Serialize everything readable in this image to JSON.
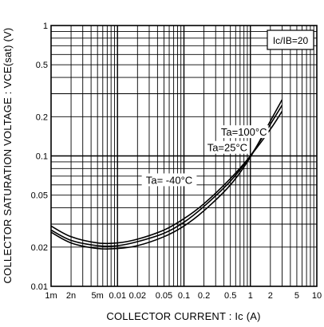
{
  "chart_data": {
    "type": "line",
    "title": "",
    "xlabel": "COLLECTOR CURRENT : Ic (A)",
    "ylabel": "COLLECTOR SATURATION VOLTAGE : VCE(sat) (V)",
    "condition_label": "Ic/IB=20",
    "x_scale": "log",
    "y_scale": "log",
    "xlim": [
      0.001,
      10
    ],
    "ylim": [
      0.01,
      1
    ],
    "grid": true,
    "x_ticks": [
      {
        "value": 0.001,
        "label": "1m"
      },
      {
        "value": 0.002,
        "label": "2n"
      },
      {
        "value": 0.005,
        "label": "5m"
      },
      {
        "value": 0.01,
        "label": "0.01"
      },
      {
        "value": 0.02,
        "label": "0.02"
      },
      {
        "value": 0.05,
        "label": "0.05"
      },
      {
        "value": 0.1,
        "label": "0.1"
      },
      {
        "value": 0.2,
        "label": "0.2"
      },
      {
        "value": 0.5,
        "label": "0.5"
      },
      {
        "value": 1,
        "label": "1"
      },
      {
        "value": 2,
        "label": "2"
      },
      {
        "value": 5,
        "label": "5"
      },
      {
        "value": 10,
        "label": "10"
      }
    ],
    "y_ticks": [
      {
        "value": 1,
        "label": "1"
      },
      {
        "value": 0.5,
        "label": "0.5"
      },
      {
        "value": 0.2,
        "label": "0.2"
      },
      {
        "value": 0.1,
        "label": "0.1"
      },
      {
        "value": 0.05,
        "label": "0.05"
      },
      {
        "value": 0.02,
        "label": "0.02"
      },
      {
        "value": 0.01,
        "label": "0.01"
      }
    ],
    "series": [
      {
        "name": "Ta=100°C",
        "x": [
          0.001,
          0.002,
          0.005,
          0.01,
          0.02,
          0.05,
          0.1,
          0.2,
          0.5,
          1,
          2,
          3
        ],
        "values": [
          0.029,
          0.024,
          0.0215,
          0.0215,
          0.023,
          0.027,
          0.033,
          0.043,
          0.067,
          0.1,
          0.16,
          0.22
        ]
      },
      {
        "name": "Ta=25°C",
        "x": [
          0.001,
          0.002,
          0.005,
          0.01,
          0.02,
          0.05,
          0.1,
          0.2,
          0.5,
          1,
          2,
          3
        ],
        "values": [
          0.027,
          0.0225,
          0.0205,
          0.0205,
          0.022,
          0.0255,
          0.031,
          0.041,
          0.064,
          0.1,
          0.175,
          0.245
        ]
      },
      {
        "name": "Ta= -40°C",
        "x": [
          0.001,
          0.002,
          0.005,
          0.01,
          0.02,
          0.05,
          0.1,
          0.2,
          0.5,
          1,
          2,
          3
        ],
        "values": [
          0.026,
          0.0215,
          0.0195,
          0.0195,
          0.0205,
          0.024,
          0.029,
          0.038,
          0.06,
          0.098,
          0.185,
          0.27
        ]
      }
    ],
    "annotations": [
      {
        "text": "Ta=100°C",
        "x": 0.8,
        "y": 0.145
      },
      {
        "text": "Ta=25°C",
        "x": 0.45,
        "y": 0.11
      },
      {
        "text": "Ta= -40°C",
        "x": 0.06,
        "y": 0.062
      }
    ]
  }
}
